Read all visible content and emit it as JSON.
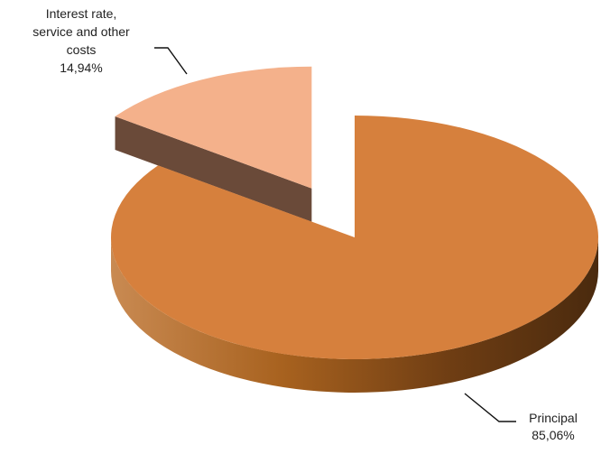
{
  "chart_data": {
    "type": "pie",
    "three_d": true,
    "exploded": true,
    "slices": [
      {
        "name": "Principal",
        "value": 85.06,
        "value_label": "85,06%",
        "label_lines": [
          "Principal",
          "85,06%"
        ],
        "color": "#d6803d",
        "side_color_light": "#c0722f",
        "side_color_dark": "#4f2e12"
      },
      {
        "name": "Interest rate, service and other costs",
        "value": 14.94,
        "value_label": "14,94%",
        "label_lines": [
          "Interest rate,",
          "service and other",
          "costs",
          "14,94%"
        ],
        "color": "#f4b18b",
        "side_color_light": "#6a4a39",
        "side_color_dark": "#5a3b2c"
      }
    ],
    "legend": "none"
  }
}
